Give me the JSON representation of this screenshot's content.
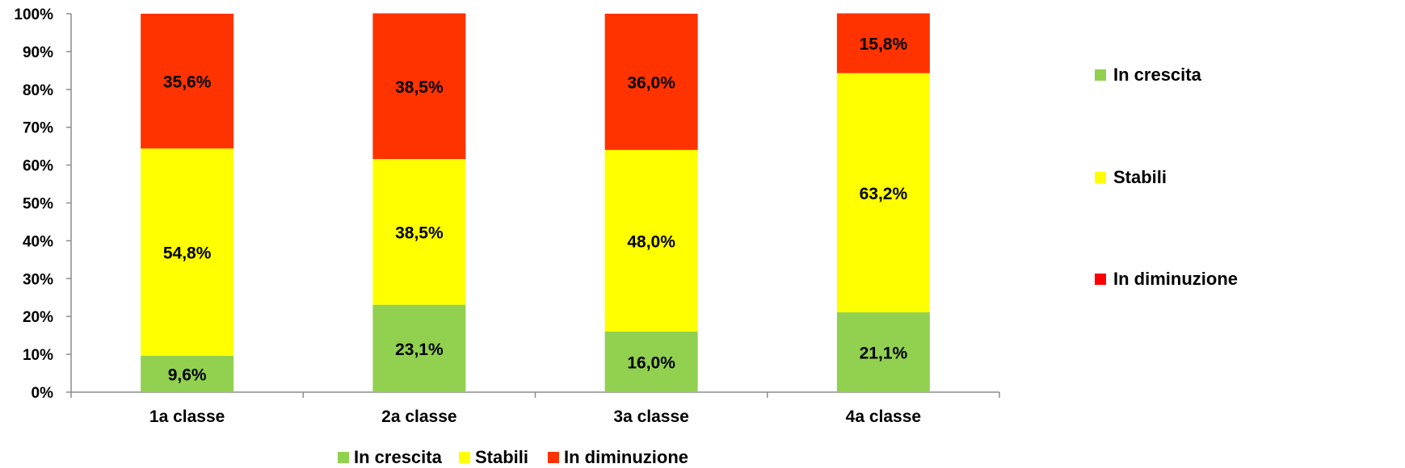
{
  "chart_data": {
    "type": "bar",
    "stacked": true,
    "percent": true,
    "categories": [
      "1a classe",
      "2a classe",
      "3a classe",
      "4a classe"
    ],
    "series": [
      {
        "name": "In crescita",
        "color": "#92d050",
        "values": [
          9.6,
          23.1,
          16.0,
          21.1
        ],
        "labels": [
          "9,6%",
          "23,1%",
          "16,0%",
          "21,1%"
        ]
      },
      {
        "name": "Stabili",
        "color": "#ffff00",
        "values": [
          54.8,
          38.5,
          48.0,
          63.2
        ],
        "labels": [
          "54,8%",
          "38,5%",
          "48,0%",
          "63,2%"
        ]
      },
      {
        "name": "In diminuzione",
        "color": "#ff3300",
        "values": [
          35.6,
          38.5,
          36.0,
          15.8
        ],
        "labels": [
          "35,6%",
          "38,5%",
          "36,0%",
          "15,8%"
        ]
      }
    ],
    "yticks": [
      "0%",
      "10%",
      "20%",
      "30%",
      "40%",
      "50%",
      "60%",
      "70%",
      "80%",
      "90%",
      "100%"
    ],
    "ylim": [
      0,
      100
    ],
    "grid": false,
    "legends": [
      {
        "placement": "right",
        "entries": [
          "In crescita",
          "Stabili",
          "In diminuzione"
        ],
        "colors": [
          "#92d050",
          "#ffff00",
          "#ff0000"
        ]
      },
      {
        "placement": "bottom",
        "entries": [
          "In crescita",
          "Stabili",
          "In diminuzione"
        ],
        "colors": [
          "#92d050",
          "#ffff00",
          "#ff3300"
        ]
      }
    ]
  }
}
